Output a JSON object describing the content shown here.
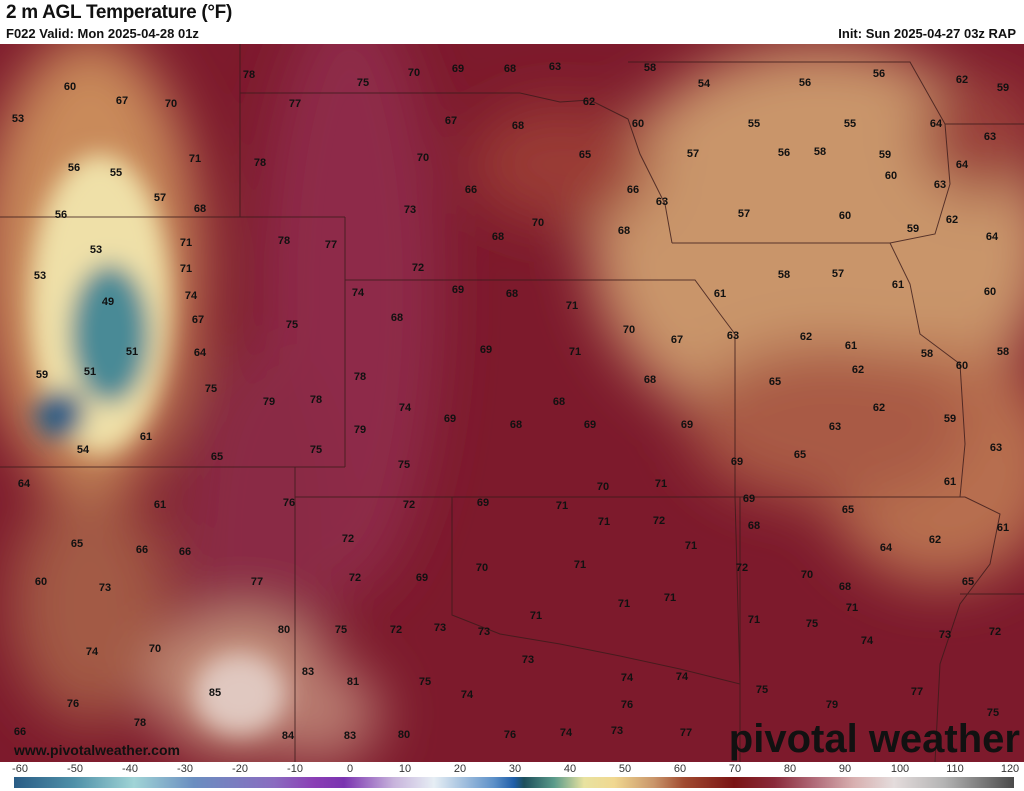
{
  "header": {
    "title": "2 m AGL Temperature (°F)",
    "valid": "F022 Valid: Mon 2025-04-28 01z",
    "init": "Init: Sun 2025-04-27 03z RAP"
  },
  "map": {
    "watermark_url": "www.pivotalweather.com",
    "logo": "pivotal weather",
    "labels": [
      60,
      67,
      70,
      53,
      78,
      75,
      70,
      69,
      68,
      63,
      58,
      54,
      56,
      56,
      62,
      59,
      77,
      62,
      67,
      68,
      60,
      55,
      55,
      64,
      63,
      56,
      55,
      71,
      78,
      70,
      65,
      57,
      56,
      58,
      59,
      64,
      57,
      66,
      66,
      63,
      60,
      63,
      56,
      68,
      73,
      70,
      68,
      57,
      60,
      62,
      59,
      64,
      53,
      71,
      78,
      77,
      68,
      53,
      71,
      72,
      58,
      57,
      61,
      60,
      49,
      74,
      74,
      69,
      68,
      71,
      61,
      67,
      75,
      68,
      70,
      67,
      63,
      62,
      61,
      58,
      58,
      51,
      64,
      69,
      71,
      62,
      60,
      59,
      51,
      78,
      68,
      65,
      75,
      79,
      78,
      74,
      68,
      62,
      59,
      61,
      54,
      79,
      69,
      68,
      69,
      69,
      63,
      63,
      65,
      75,
      75,
      69,
      65,
      61,
      64,
      76,
      72,
      69,
      71,
      70,
      71,
      69,
      65,
      61,
      61,
      71,
      72,
      68,
      71,
      62,
      64,
      65,
      66,
      66,
      72,
      60,
      73,
      77,
      72,
      69,
      70,
      71,
      72,
      70,
      68,
      71,
      65,
      71,
      71,
      71,
      71,
      75,
      74,
      73,
      72,
      80,
      75,
      72,
      73,
      73,
      74,
      70,
      73,
      83,
      81,
      75,
      74,
      74,
      74,
      75,
      85,
      76,
      76,
      79,
      77,
      75,
      78,
      66,
      84,
      83,
      80,
      76,
      74,
      73,
      77
    ],
    "colors": {
      "base": "#7d1a2c",
      "warm_tan": "#c9956a",
      "cool_blue": "#2a5d86",
      "cream": "#f0e2b0"
    }
  },
  "colorbar": {
    "ticks": [
      "-60",
      "-50",
      "-40",
      "-30",
      "-20",
      "-10",
      "0",
      "10",
      "20",
      "30",
      "40",
      "50",
      "60",
      "70",
      "80",
      "90",
      "100",
      "110",
      "120"
    ],
    "units": "°F"
  }
}
